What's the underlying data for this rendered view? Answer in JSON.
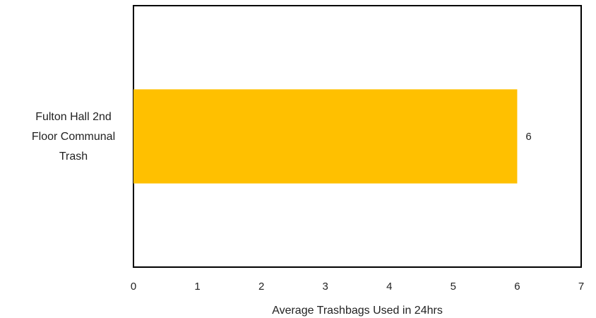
{
  "chart_data": {
    "type": "bar",
    "orientation": "horizontal",
    "categories": [
      "Fulton Hall 2nd Floor Communal Trash"
    ],
    "category_label_lines": [
      [
        "Fulton Hall 2nd",
        "Floor Communal",
        "Trash"
      ]
    ],
    "values": [
      6
    ],
    "data_labels": [
      "6"
    ],
    "xlabel": "Average Trashbags Used in 24hrs",
    "ylabel": "",
    "title": "",
    "xlim": [
      0,
      7
    ],
    "xticks": [
      "0",
      "1",
      "2",
      "3",
      "4",
      "5",
      "6",
      "7"
    ],
    "grid": false,
    "legend": "none",
    "bar_color": "#FFC000"
  }
}
